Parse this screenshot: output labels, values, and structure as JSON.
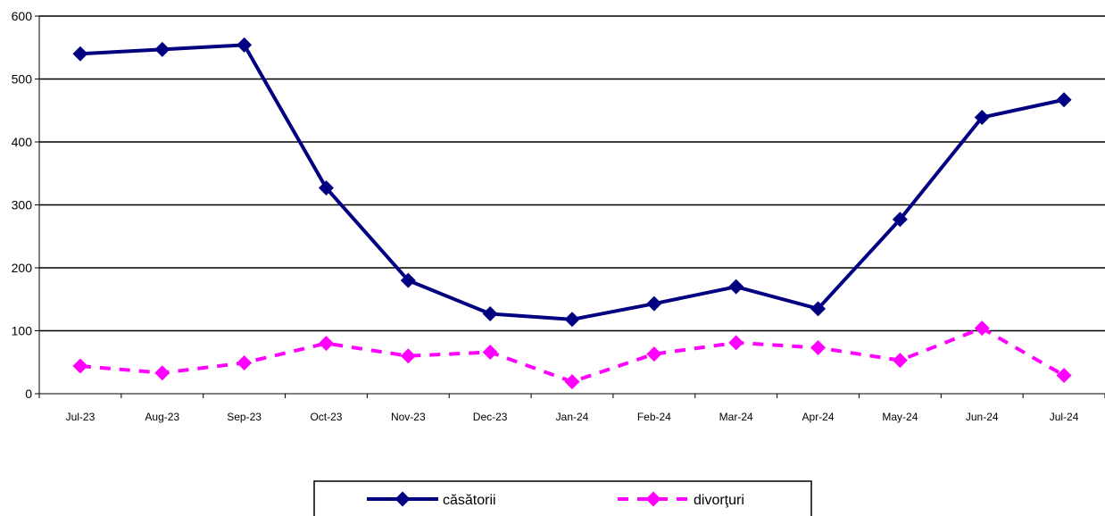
{
  "chart_data": {
    "type": "line",
    "categories": [
      "Jul-23",
      "Aug-23",
      "Sep-23",
      "Oct-23",
      "Nov-23",
      "Dec-23",
      "Jan-24",
      "Feb-24",
      "Mar-24",
      "Apr-24",
      "May-24",
      "Jun-24",
      "Jul-24"
    ],
    "series": [
      {
        "name": "căsătorii",
        "color": "#000080",
        "style": "solid",
        "marker": "diamond",
        "values": [
          540,
          547,
          554,
          327,
          180,
          127,
          118,
          143,
          170,
          135,
          277,
          439,
          467
        ]
      },
      {
        "name": "divorţuri",
        "color": "#ff00ff",
        "style": "dashed",
        "marker": "diamond",
        "values": [
          44,
          33,
          49,
          80,
          60,
          66,
          19,
          63,
          81,
          73,
          53,
          104,
          29
        ]
      }
    ],
    "yticks": [
      "0",
      "100",
      "200",
      "300",
      "400",
      "500",
      "600"
    ],
    "ylim": [
      0,
      600
    ],
    "grid": "horizontal",
    "legend_position": "bottom-center"
  }
}
